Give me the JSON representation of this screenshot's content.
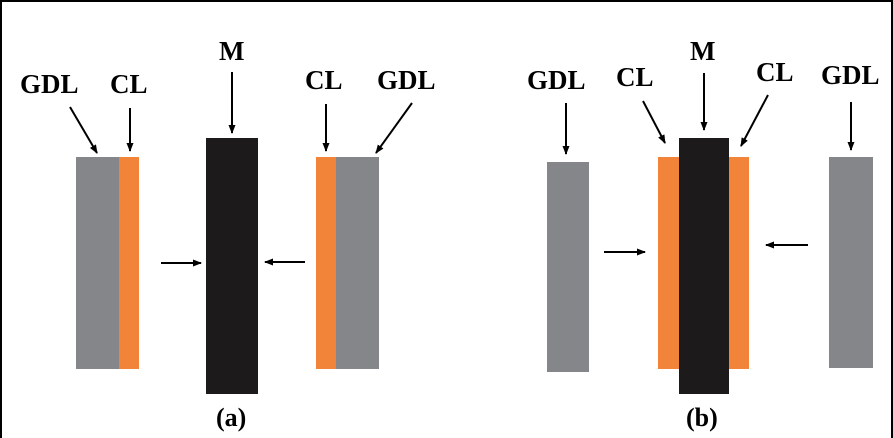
{
  "labels": {
    "gdl": "GDL",
    "cl": "CL",
    "m": "M"
  },
  "captions": {
    "a": "(a)",
    "b": "(b)"
  },
  "colors": {
    "gdl": "#85868a",
    "cl": "#f2843a",
    "membrane": "#1c1a1a",
    "arrow": "#000000"
  }
}
